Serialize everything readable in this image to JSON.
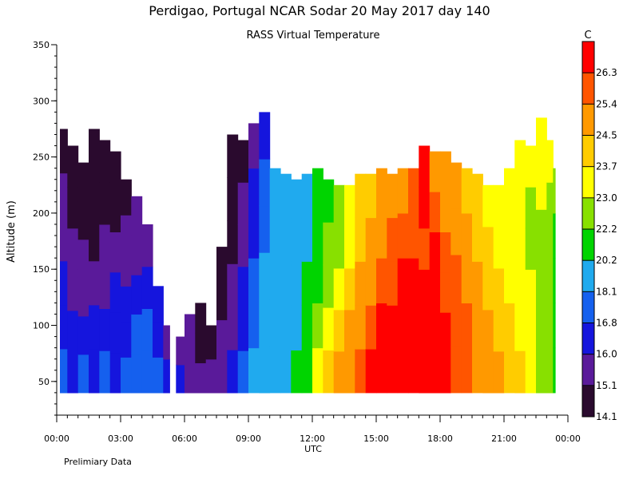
{
  "chart_data": {
    "type": "heatmap",
    "title": "Perdigao, Portugal  NCAR Sodar  20 May 2017  day 140",
    "subtitle": "RASS Virtual Temperature",
    "xlabel": "UTC",
    "ylabel": "Altitude (m)",
    "footnote": "Prelimiary Data",
    "x_ticks": [
      "00:00",
      "03:00",
      "06:00",
      "09:00",
      "12:00",
      "15:00",
      "18:00",
      "21:00",
      "00:00"
    ],
    "x_range_hours": [
      0,
      24
    ],
    "y_ticks": [
      50,
      100,
      150,
      200,
      250,
      300,
      350
    ],
    "ylim": [
      20,
      350
    ],
    "data_altitude_range": [
      40,
      300
    ],
    "colorbar": {
      "unit": "C",
      "boundaries": [
        14.1,
        15.1,
        16.0,
        16.8,
        18.1,
        20.2,
        22.2,
        23.0,
        23.7,
        24.5,
        25.4,
        26.3
      ],
      "colors": [
        "#2a0a2e",
        "#5a1a9a",
        "#1515dd",
        "#1560ee",
        "#20aaee",
        "#00d400",
        "#88e000",
        "#ffff00",
        "#ffcc00",
        "#ff9900",
        "#ff5500",
        "#ff0000"
      ]
    },
    "profiles": [
      {
        "hour": 0.0,
        "top": 0,
        "temp": [
          0
        ]
      },
      {
        "hour": 0.15,
        "top": 275,
        "temp": [
          3,
          2,
          2,
          1,
          1,
          0
        ]
      },
      {
        "hour": 0.5,
        "top": 260,
        "temp": [
          2,
          2,
          1,
          1,
          0,
          0
        ]
      },
      {
        "hour": 1.0,
        "top": 245,
        "temp": [
          3,
          2,
          1,
          1,
          0,
          0
        ]
      },
      {
        "hour": 1.5,
        "top": 275,
        "temp": [
          2,
          2,
          1,
          0,
          0,
          0
        ]
      },
      {
        "hour": 2.0,
        "top": 265,
        "temp": [
          3,
          2,
          1,
          1,
          0,
          0
        ]
      },
      {
        "hour": 2.5,
        "top": 255,
        "temp": [
          2,
          2,
          2,
          1,
          0,
          0
        ]
      },
      {
        "hour": 3.0,
        "top": 230,
        "temp": [
          3,
          2,
          2,
          1,
          1,
          0
        ]
      },
      {
        "hour": 3.5,
        "top": 215,
        "temp": [
          3,
          3,
          2,
          1,
          1
        ]
      },
      {
        "hour": 4.0,
        "top": 190,
        "temp": [
          3,
          3,
          2,
          1
        ]
      },
      {
        "hour": 4.5,
        "top": 135,
        "temp": [
          3,
          2,
          2
        ]
      },
      {
        "hour": 5.0,
        "top": 100,
        "temp": [
          2,
          1
        ]
      },
      {
        "hour": 5.3,
        "top": 0,
        "temp": [
          0
        ]
      },
      {
        "hour": 5.55,
        "top": 0,
        "temp": [
          0
        ]
      },
      {
        "hour": 5.6,
        "top": 90,
        "temp": [
          2,
          1
        ]
      },
      {
        "hour": 6.0,
        "top": 110,
        "temp": [
          1,
          1
        ]
      },
      {
        "hour": 6.5,
        "top": 120,
        "temp": [
          1,
          0,
          0
        ]
      },
      {
        "hour": 7.0,
        "top": 100,
        "temp": [
          1,
          0
        ]
      },
      {
        "hour": 7.5,
        "top": 170,
        "temp": [
          1,
          1,
          0,
          0
        ]
      },
      {
        "hour": 8.0,
        "top": 270,
        "temp": [
          2,
          1,
          1,
          0,
          0,
          0
        ]
      },
      {
        "hour": 8.5,
        "top": 265,
        "temp": [
          3,
          2,
          2,
          1,
          1,
          0
        ]
      },
      {
        "hour": 9.0,
        "top": 280,
        "temp": [
          4,
          3,
          3,
          2,
          2,
          1
        ]
      },
      {
        "hour": 9.5,
        "top": 290,
        "temp": [
          4,
          4,
          4,
          3,
          3,
          2
        ]
      },
      {
        "hour": 10.0,
        "top": 240,
        "temp": [
          4,
          4,
          4,
          4,
          4
        ]
      },
      {
        "hour": 10.5,
        "top": 235,
        "temp": [
          4,
          4,
          4,
          4,
          4
        ]
      },
      {
        "hour": 11.0,
        "top": 230,
        "temp": [
          5,
          4,
          4,
          4,
          4
        ]
      },
      {
        "hour": 11.5,
        "top": 235,
        "temp": [
          5,
          5,
          5,
          4,
          4
        ]
      },
      {
        "hour": 12.0,
        "top": 240,
        "temp": [
          7,
          6,
          5,
          5,
          5
        ]
      },
      {
        "hour": 12.5,
        "top": 230,
        "temp": [
          8,
          7,
          6,
          6,
          5
        ]
      },
      {
        "hour": 13.0,
        "top": 225,
        "temp": [
          9,
          8,
          7,
          6,
          6
        ]
      },
      {
        "hour": 13.5,
        "top": 225,
        "temp": [
          9,
          9,
          8,
          7,
          7
        ]
      },
      {
        "hour": 14.0,
        "top": 235,
        "temp": [
          10,
          9,
          9,
          8,
          8
        ]
      },
      {
        "hour": 14.5,
        "top": 235,
        "temp": [
          11,
          10,
          9,
          9,
          8
        ]
      },
      {
        "hour": 15.0,
        "top": 240,
        "temp": [
          11,
          11,
          10,
          9,
          9
        ]
      },
      {
        "hour": 15.5,
        "top": 235,
        "temp": [
          11,
          11,
          10,
          10,
          9
        ]
      },
      {
        "hour": 16.0,
        "top": 240,
        "temp": [
          11,
          11,
          11,
          10,
          9
        ]
      },
      {
        "hour": 16.5,
        "top": 240,
        "temp": [
          11,
          11,
          11,
          10,
          10
        ]
      },
      {
        "hour": 17.0,
        "top": 260,
        "temp": [
          11,
          11,
          11,
          10,
          11,
          11
        ]
      },
      {
        "hour": 17.5,
        "top": 255,
        "temp": [
          11,
          11,
          11,
          11,
          10,
          9
        ]
      },
      {
        "hour": 18.0,
        "top": 255,
        "temp": [
          11,
          11,
          10,
          10,
          9,
          9
        ]
      },
      {
        "hour": 18.5,
        "top": 245,
        "temp": [
          10,
          10,
          10,
          9,
          9
        ]
      },
      {
        "hour": 19.0,
        "top": 240,
        "temp": [
          10,
          10,
          9,
          9,
          8
        ]
      },
      {
        "hour": 19.5,
        "top": 235,
        "temp": [
          9,
          9,
          9,
          8,
          8
        ]
      },
      {
        "hour": 20.0,
        "top": 225,
        "temp": [
          9,
          9,
          8,
          8,
          7
        ]
      },
      {
        "hour": 20.5,
        "top": 225,
        "temp": [
          9,
          8,
          8,
          7,
          7
        ]
      },
      {
        "hour": 21.0,
        "top": 240,
        "temp": [
          8,
          8,
          7,
          7,
          7
        ]
      },
      {
        "hour": 21.5,
        "top": 265,
        "temp": [
          8,
          7,
          7,
          7,
          7,
          7
        ]
      },
      {
        "hour": 22.0,
        "top": 260,
        "temp": [
          7,
          7,
          7,
          6,
          6,
          7
        ]
      },
      {
        "hour": 22.5,
        "top": 285,
        "temp": [
          6,
          6,
          6,
          6,
          7,
          7
        ]
      },
      {
        "hour": 23.0,
        "top": 265,
        "temp": [
          6,
          6,
          6,
          6,
          6,
          7
        ]
      },
      {
        "hour": 23.3,
        "top": 240,
        "temp": [
          5,
          5,
          5,
          5,
          6
        ]
      },
      {
        "hour": 23.4,
        "top": 0,
        "temp": [
          0
        ]
      },
      {
        "hour": 24.0,
        "top": 0,
        "temp": [
          0
        ]
      }
    ]
  }
}
